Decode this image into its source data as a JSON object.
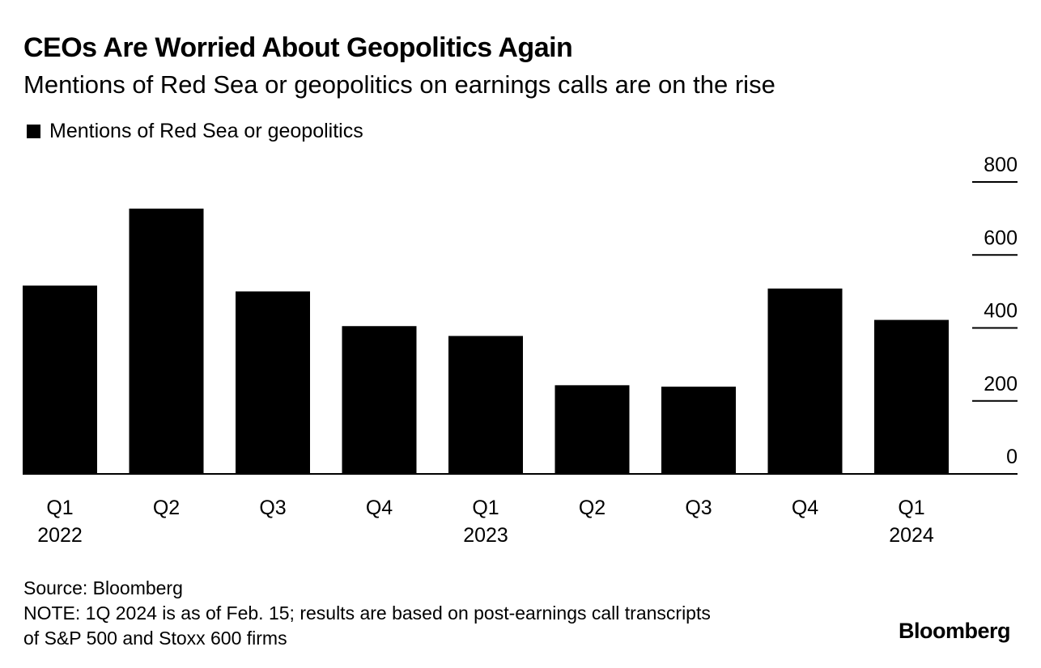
{
  "chart_data": {
    "type": "bar",
    "title": "CEOs Are Worried About Geopolitics Again",
    "subtitle": "Mentions of Red Sea or geopolitics on earnings calls are on the rise",
    "categories": [
      "Q1",
      "Q2",
      "Q3",
      "Q4",
      "Q1",
      "Q2",
      "Q3",
      "Q4",
      "Q1"
    ],
    "year_labels": [
      "2022",
      "",
      "",
      "",
      "2023",
      "",
      "",
      "",
      "2024"
    ],
    "series": [
      {
        "name": "Mentions of Red Sea or geopolitics",
        "color": "#000000",
        "values": [
          516,
          727,
          500,
          405,
          378,
          243,
          239,
          508,
          422
        ]
      }
    ],
    "ylim": [
      0,
      800
    ],
    "yticks": [
      "0",
      "200",
      "400",
      "600",
      "800"
    ],
    "y_axis_position": "right",
    "grid": false,
    "legend_position": "top-left",
    "source": "Source: Bloomberg",
    "note_lines": [
      "NOTE: 1Q 2024 is as of Feb. 15; results are based on post-earnings call transcripts",
      "of S&P 500 and Stoxx 600 firms"
    ],
    "brand": "Bloomberg"
  }
}
